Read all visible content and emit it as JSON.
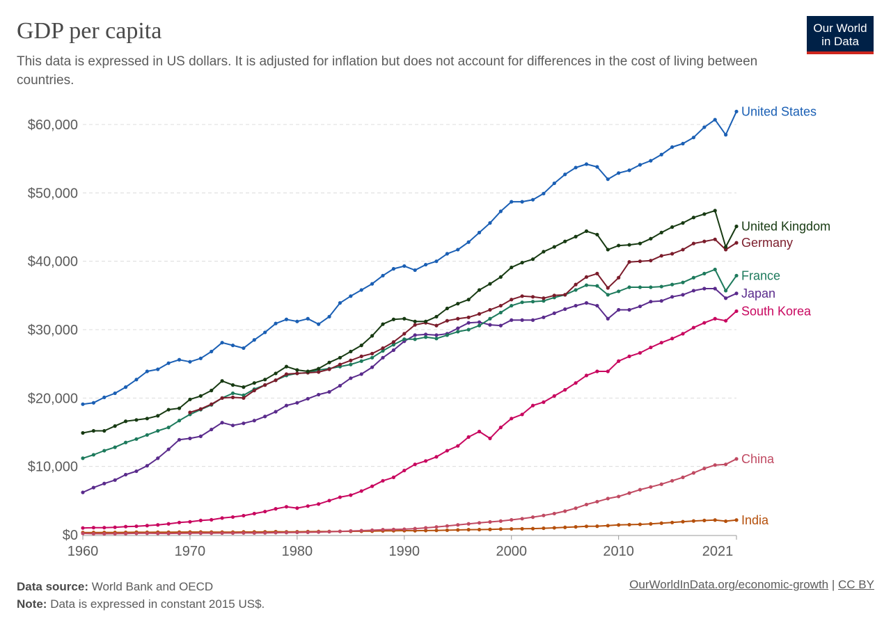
{
  "header": {
    "title": "GDP per capita",
    "subtitle": "This data is expressed in US dollars. It is adjusted for inflation but does not account for differences in the cost of living between countries.",
    "logo_text": "Our World in Data",
    "logo_line1": "Our World",
    "logo_line2": "in Data"
  },
  "footer": {
    "source_label": "Data source:",
    "source_text": "World Bank and OECD",
    "note_label": "Note:",
    "note_text": "Data is expressed in constant 2015 US$.",
    "link_text": "OurWorldInData.org/economic-growth",
    "separator": "|",
    "license_text": "CC BY"
  },
  "chart_data": {
    "type": "line",
    "title": "GDP per capita",
    "xlabel": "",
    "ylabel": "",
    "xlim": [
      1960,
      2021
    ],
    "ylim": [
      0,
      62000
    ],
    "grid": "horizontal dashed",
    "legend": "inline labels at right end",
    "x_ticks": [
      1960,
      1970,
      1980,
      1990,
      2000,
      2010,
      2021
    ],
    "x_tick_labels": [
      "1960",
      "1970",
      "1980",
      "1990",
      "2000",
      "2010",
      "2021"
    ],
    "y_ticks": [
      0,
      10000,
      20000,
      30000,
      40000,
      50000,
      60000
    ],
    "y_tick_labels": [
      "$0",
      "$10,000",
      "$20,000",
      "$30,000",
      "$40,000",
      "$50,000",
      "$60,000"
    ],
    "x_start": 1960,
    "series": [
      {
        "name": "United States",
        "color": "#1a5fb4",
        "values": [
          19100,
          19300,
          20100,
          20700,
          21600,
          22700,
          23900,
          24200,
          25100,
          25600,
          25300,
          25800,
          26800,
          28100,
          27700,
          27300,
          28500,
          29600,
          30900,
          31500,
          31200,
          31600,
          30800,
          31900,
          33900,
          34900,
          35800,
          36700,
          37900,
          38900,
          39300,
          38700,
          39500,
          40000,
          41100,
          41700,
          42800,
          44200,
          45600,
          47300,
          48700,
          48700,
          49000,
          49900,
          51400,
          52700,
          53700,
          54200,
          53800,
          52000,
          52900,
          53300,
          54100,
          54700,
          55600,
          56700,
          57200,
          58100,
          59600,
          60700,
          58500,
          61900
        ]
      },
      {
        "name": "United Kingdom",
        "color": "#173a12",
        "values": [
          14900,
          15200,
          15200,
          15900,
          16600,
          16800,
          17000,
          17400,
          18300,
          18500,
          19800,
          20300,
          21100,
          22500,
          21900,
          21600,
          22200,
          22700,
          23600,
          24600,
          24100,
          23900,
          24300,
          25200,
          25900,
          26800,
          27700,
          29100,
          30800,
          31500,
          31600,
          31200,
          31200,
          31900,
          33100,
          33800,
          34400,
          35800,
          36700,
          37700,
          39100,
          39800,
          40300,
          41400,
          42100,
          42900,
          43600,
          44400,
          43900,
          41700,
          42300,
          42400,
          42600,
          43300,
          44200,
          45000,
          45600,
          46400,
          46900,
          47400,
          42100,
          45100
        ]
      },
      {
        "name": "Germany",
        "color": "#7b1c2b",
        "values": [
          null,
          null,
          null,
          null,
          null,
          null,
          null,
          null,
          null,
          null,
          17900,
          18400,
          19100,
          20000,
          20100,
          20000,
          21100,
          21900,
          22600,
          23500,
          23600,
          23700,
          23800,
          24200,
          24900,
          25500,
          26100,
          26500,
          27300,
          28200,
          29400,
          30700,
          31000,
          30600,
          31300,
          31600,
          31800,
          32300,
          32900,
          33500,
          34400,
          34900,
          34800,
          34600,
          35000,
          35100,
          36600,
          37700,
          38200,
          36100,
          37600,
          39900,
          40000,
          40100,
          40800,
          41100,
          41700,
          42600,
          42900,
          43200,
          41700,
          42700
        ]
      },
      {
        "name": "France",
        "color": "#1d7a5c",
        "values": [
          11200,
          11700,
          12300,
          12800,
          13500,
          14000,
          14600,
          15200,
          15700,
          16700,
          17600,
          18300,
          19000,
          20000,
          20700,
          20400,
          21300,
          21900,
          22600,
          23300,
          23600,
          23700,
          24100,
          24300,
          24600,
          24900,
          25400,
          25900,
          26900,
          27800,
          28600,
          28600,
          28900,
          28700,
          29200,
          29700,
          30000,
          30600,
          31600,
          32500,
          33500,
          34000,
          34100,
          34200,
          34700,
          35100,
          35800,
          36500,
          36400,
          35100,
          35600,
          36200,
          36200,
          36200,
          36300,
          36600,
          36900,
          37600,
          38200,
          38800,
          35700,
          37900
        ]
      },
      {
        "name": "Japan",
        "color": "#5a2b8c",
        "values": [
          6200,
          6900,
          7500,
          8000,
          8800,
          9300,
          10100,
          11200,
          12500,
          13900,
          14100,
          14400,
          15400,
          16400,
          16000,
          16300,
          16700,
          17300,
          18000,
          18900,
          19300,
          19900,
          20500,
          20900,
          21800,
          22900,
          23500,
          24500,
          25900,
          27000,
          28300,
          29200,
          29300,
          29200,
          29400,
          30200,
          31000,
          31100,
          30700,
          30600,
          31400,
          31400,
          31400,
          31800,
          32400,
          33000,
          33500,
          33900,
          33500,
          31600,
          32900,
          32900,
          33400,
          34100,
          34200,
          34800,
          35100,
          35700,
          36000,
          36000,
          34600,
          35300
        ]
      },
      {
        "name": "South Korea",
        "color": "#c8075f",
        "values": [
          1000,
          1050,
          1050,
          1100,
          1200,
          1250,
          1350,
          1450,
          1600,
          1800,
          1900,
          2100,
          2200,
          2450,
          2600,
          2800,
          3100,
          3400,
          3800,
          4100,
          3900,
          4200,
          4500,
          5000,
          5500,
          5800,
          6400,
          7100,
          7900,
          8400,
          9400,
          10300,
          10800,
          11400,
          12300,
          13000,
          14300,
          15100,
          14100,
          15700,
          17000,
          17600,
          18900,
          19400,
          20300,
          21200,
          22200,
          23300,
          23900,
          23900,
          25400,
          26100,
          26600,
          27400,
          28100,
          28700,
          29400,
          30300,
          31000,
          31600,
          31300,
          32700
        ]
      },
      {
        "name": "China",
        "color": "#c04a62",
        "values": [
          200,
          160,
          150,
          160,
          180,
          210,
          220,
          200,
          190,
          210,
          230,
          240,
          240,
          250,
          250,
          270,
          260,
          280,
          310,
          330,
          350,
          370,
          400,
          450,
          500,
          560,
          610,
          670,
          750,
          780,
          820,
          900,
          1020,
          1150,
          1290,
          1450,
          1600,
          1750,
          1880,
          2010,
          2190,
          2360,
          2580,
          2830,
          3110,
          3460,
          3890,
          4430,
          4850,
          5300,
          5600,
          6100,
          6600,
          7000,
          7400,
          7900,
          8400,
          9050,
          9700,
          10200,
          10300,
          11100
        ]
      },
      {
        "name": "India",
        "color": "#b5500c",
        "values": [
          330,
          340,
          350,
          350,
          360,
          380,
          370,
          380,
          390,
          400,
          410,
          410,
          400,
          400,
          400,
          420,
          420,
          440,
          460,
          440,
          450,
          470,
          480,
          490,
          500,
          510,
          520,
          530,
          570,
          590,
          610,
          600,
          620,
          640,
          670,
          710,
          750,
          760,
          790,
          840,
          860,
          880,
          900,
          960,
          1020,
          1090,
          1160,
          1240,
          1260,
          1340,
          1440,
          1480,
          1530,
          1600,
          1700,
          1800,
          1920,
          2020,
          2100,
          2160,
          1990,
          2160
        ]
      }
    ]
  }
}
